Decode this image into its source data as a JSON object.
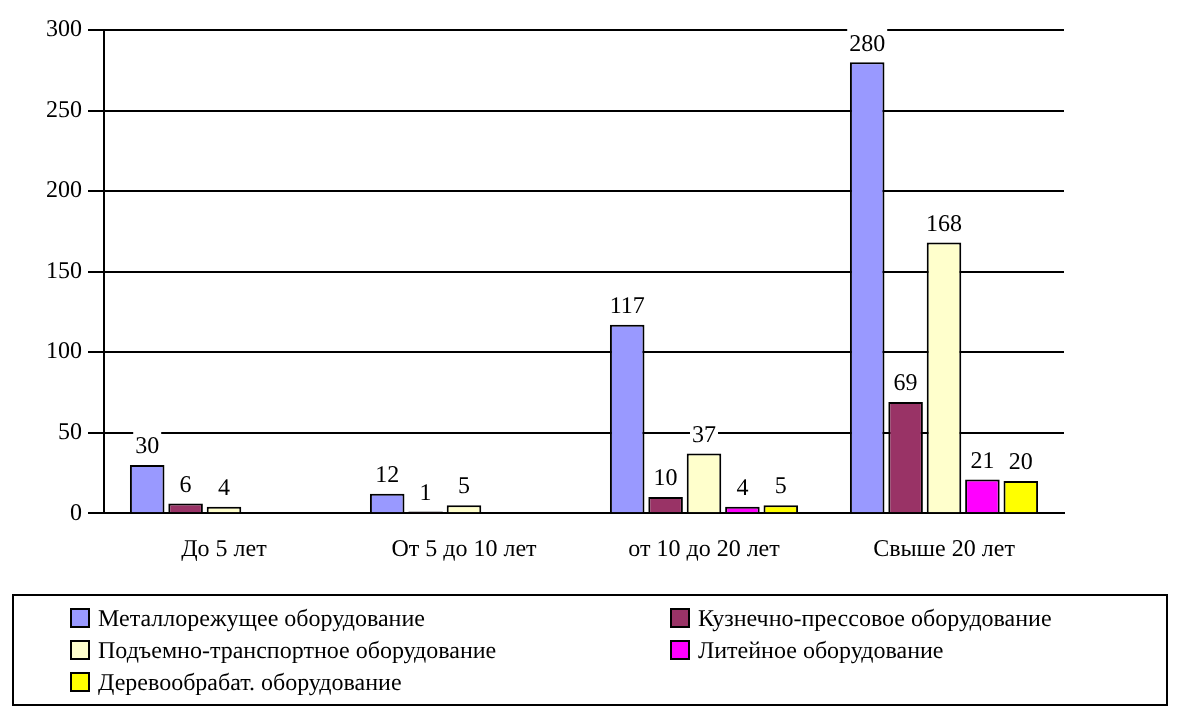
{
  "chart_data": {
    "type": "bar",
    "categories": [
      "До 5 лет",
      "От 5 до 10 лет",
      "от 10 до 20 лет",
      "Свыше 20 лет"
    ],
    "series": [
      {
        "name": "Металлорежущее оборудование",
        "color": "#9999ff",
        "values": [
          30,
          12,
          117,
          280
        ]
      },
      {
        "name": "Кузнечно-прессовое оборудование",
        "color": "#993366",
        "values": [
          6,
          1,
          10,
          69
        ]
      },
      {
        "name": "Подъемно-транспортное оборудование",
        "color": "#ffffcc",
        "values": [
          4,
          5,
          37,
          168
        ]
      },
      {
        "name": "Литейное оборудование",
        "color": "#ff00ff",
        "values": [
          null,
          null,
          4,
          21
        ]
      },
      {
        "name": "Деревообрабат. оборудование",
        "color": "#ffff00",
        "values": [
          null,
          null,
          5,
          20
        ]
      }
    ],
    "ylim": [
      0,
      300
    ],
    "yticks": [
      0,
      50,
      100,
      150,
      200,
      250,
      300
    ],
    "grid": "y",
    "legend": "bottom",
    "data_labels": true
  }
}
